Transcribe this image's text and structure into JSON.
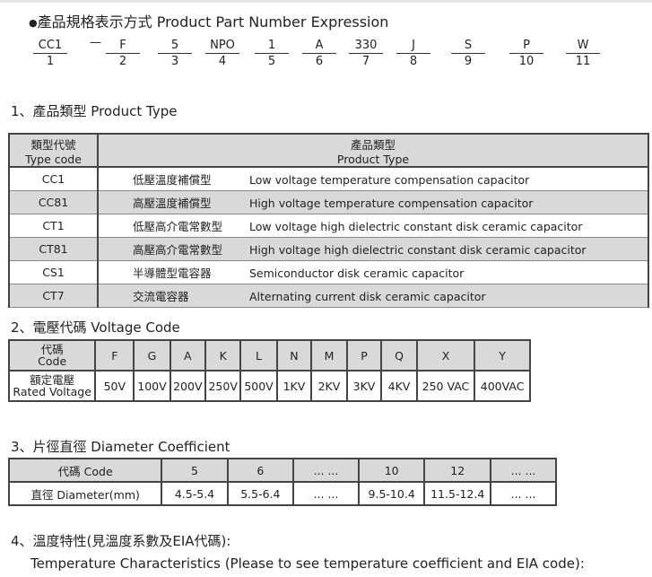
{
  "heading": {
    "bullet": "●",
    "title": "產品規格表示方式 Product Part Number Expression"
  },
  "part_number": {
    "dash": "—",
    "items": [
      {
        "code": "CC1",
        "pos": "1"
      },
      {
        "code": "F",
        "pos": "2"
      },
      {
        "code": "5",
        "pos": "3"
      },
      {
        "code": "NPO",
        "pos": "4"
      },
      {
        "code": "1",
        "pos": "5"
      },
      {
        "code": "A",
        "pos": "6"
      },
      {
        "code": "330",
        "pos": "7"
      },
      {
        "code": "J",
        "pos": "8"
      },
      {
        "code": "S",
        "pos": "9"
      },
      {
        "code": "P",
        "pos": "10"
      },
      {
        "code": "W",
        "pos": "11"
      }
    ]
  },
  "section1": {
    "title": "1、產品類型 Product  Type",
    "header": {
      "col1_zh": "類型代號",
      "col1_en": "Type code",
      "col2_zh": "產品類型",
      "col2_en": "Product Type"
    },
    "rows": [
      {
        "code": "CC1",
        "zh": "低壓溫度補償型",
        "en": "Low voltage  temperature  compensation capacitor"
      },
      {
        "code": "CC81",
        "zh": "高壓溫度補償型",
        "en": "High voltage temperature compensation capacitor"
      },
      {
        "code": "CT1",
        "zh": "低壓高介電常數型",
        "en": "Low voltage high dielectric constant disk ceramic capacitor"
      },
      {
        "code": "CT81",
        "zh": "高壓高介電常數型",
        "en": "High voltage high dielectric constant disk ceramic capacitor"
      },
      {
        "code": "CS1",
        "zh": "半導體型電容器",
        "en": "Semiconductor disk ceramic capacitor"
      },
      {
        "code": "CT7",
        "zh": "交流電容器",
        "en": "Alternating current disk ceramic capacitor"
      }
    ]
  },
  "section2": {
    "title": "2、電壓代碼  Voltage Code",
    "row1_label_zh": "代碼",
    "row1_label_en": "Code",
    "row2_label_zh": "額定電壓",
    "row2_label_en": "Rated Voltage",
    "codes": [
      "F",
      "G",
      "A",
      "K",
      "L",
      "N",
      "M",
      "P",
      "Q",
      "X",
      "Y"
    ],
    "voltages": [
      "50V",
      "100V",
      "200V",
      "250V",
      "500V",
      "1KV",
      "2KV",
      "3KV",
      "4KV",
      "250 VAC",
      "400VAC"
    ]
  },
  "section3": {
    "title": "3、片徑直徑 Diameter Coefficient",
    "row1_label": "代碼 Code",
    "row2_label": "直徑 Diameter(mm)",
    "codes": [
      "5",
      "6",
      "... ...",
      "10",
      "12",
      "... ..."
    ],
    "diameters": [
      "4.5-5.4",
      "5.5-6.4",
      "... ...",
      "9.5-10.4",
      "11.5-12.4",
      "... ..."
    ]
  },
  "section4": {
    "title": "4、溫度特性(見溫度系數及EIA代碼):",
    "subtitle": "Temperature Characteristics (Please to see temperature coefficient and EIA code):"
  },
  "colors": {
    "header_gray": "#d9d9d9",
    "border": "#444444"
  }
}
